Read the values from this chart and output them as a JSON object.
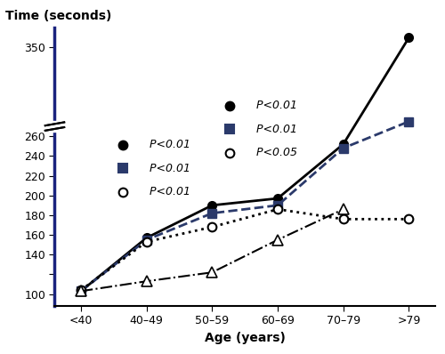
{
  "x_labels": [
    "<40",
    "40–49",
    "50–59",
    "60–69",
    "70–79",
    ">79"
  ],
  "x_positions": [
    0,
    1,
    2,
    3,
    4,
    5
  ],
  "AS_values": [
    103,
    157,
    190,
    197,
    252,
    360
  ],
  "CNOB_values": [
    103,
    155,
    182,
    190,
    248,
    275
  ],
  "COPD_values": [
    104,
    153,
    168,
    186,
    176,
    176
  ],
  "normal_values": [
    103,
    113,
    122,
    155,
    186
  ],
  "axis_color": "#1a237e",
  "ylabel": "Time (seconds)",
  "xlabel": "Age (years)",
  "ymin": 88,
  "ymax": 370
}
